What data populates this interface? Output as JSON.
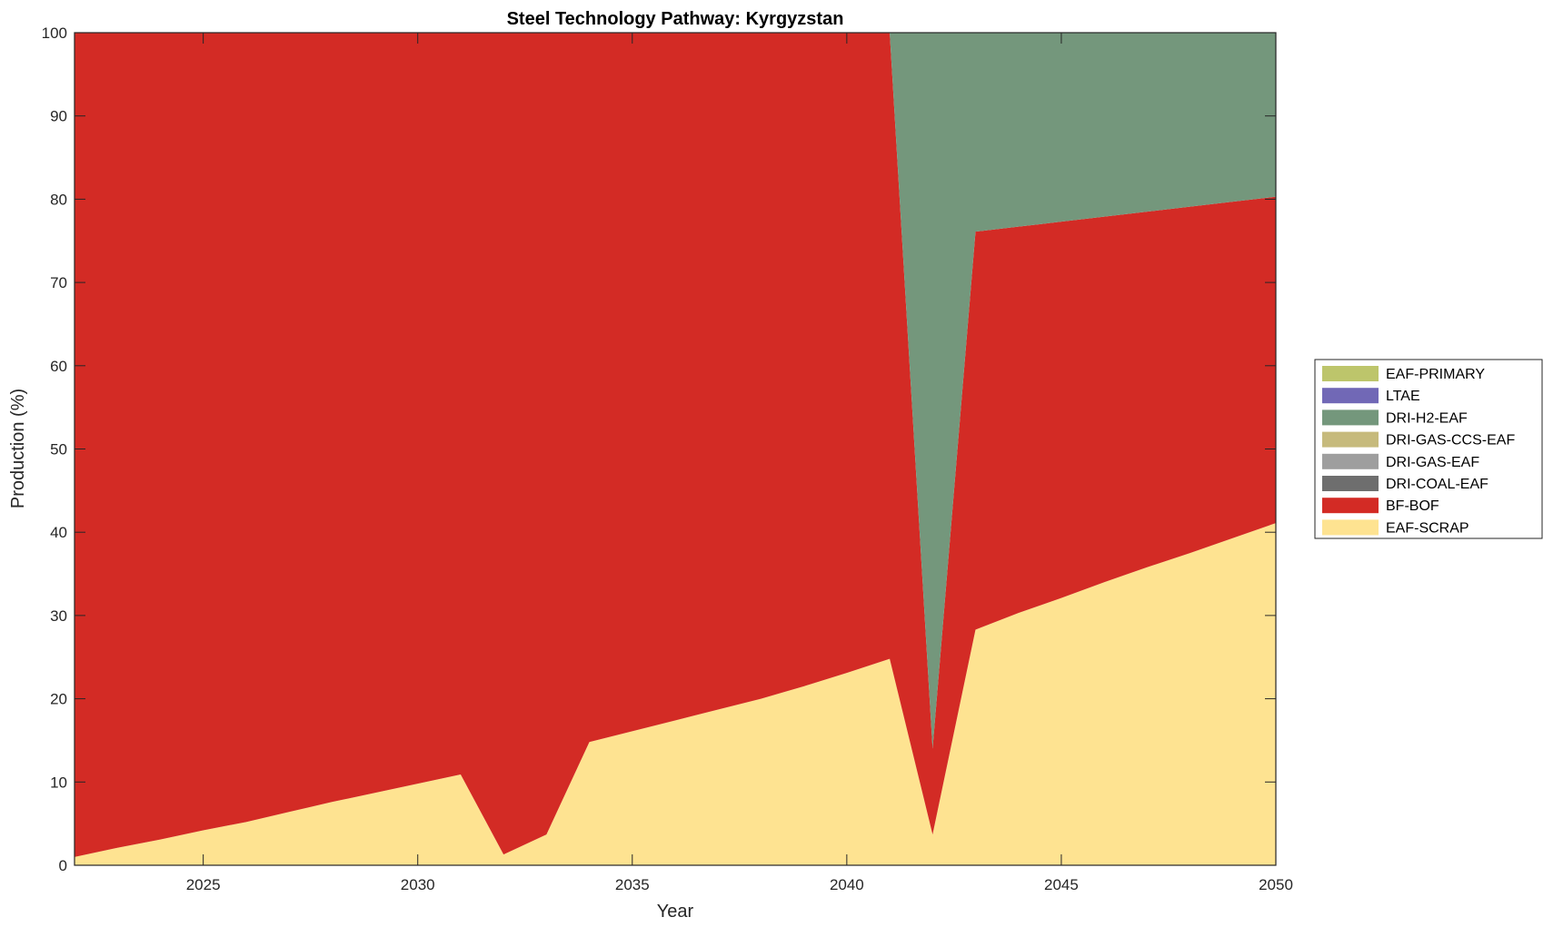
{
  "chart_data": {
    "type": "area",
    "title": "Steel Technology Pathway: Kyrgyzstan",
    "xlabel": "Year",
    "ylabel": "Production (%)",
    "xlim": [
      2022,
      2050
    ],
    "ylim": [
      0,
      100
    ],
    "xticks": [
      2025,
      2030,
      2035,
      2040,
      2045,
      2050
    ],
    "yticks": [
      0,
      10,
      20,
      30,
      40,
      50,
      60,
      70,
      80,
      90,
      100
    ],
    "grid": false,
    "legend_position": "right",
    "x": [
      2022,
      2023,
      2024,
      2025,
      2026,
      2027,
      2028,
      2029,
      2030,
      2031,
      2032,
      2033,
      2034,
      2035,
      2036,
      2037,
      2038,
      2039,
      2040,
      2041,
      2042,
      2043,
      2044,
      2045,
      2046,
      2047,
      2048,
      2049,
      2050
    ],
    "series": [
      {
        "name": "EAF-SCRAP",
        "color": "#FEE391",
        "values": [
          1.0,
          2.1,
          3.1,
          4.2,
          5.2,
          6.4,
          7.6,
          8.7,
          9.8,
          10.9,
          1.3,
          3.7,
          14.8,
          16.1,
          17.4,
          18.7,
          20.0,
          21.5,
          23.1,
          24.8,
          3.7,
          28.3,
          30.3,
          32.1,
          34.0,
          35.8,
          37.5,
          39.3,
          41.1
        ]
      },
      {
        "name": "BF-BOF",
        "color": "#D32B25",
        "values": [
          99.0,
          97.9,
          96.9,
          95.8,
          94.8,
          93.6,
          92.4,
          91.3,
          90.2,
          89.1,
          98.7,
          96.3,
          85.2,
          83.9,
          82.6,
          81.3,
          80.0,
          78.5,
          76.9,
          75.2,
          10.3,
          47.8,
          46.4,
          45.2,
          43.9,
          42.7,
          41.6,
          40.4,
          39.2
        ]
      },
      {
        "name": "DRI-COAL-EAF",
        "color": "#6E6E6E",
        "values": [
          0,
          0,
          0,
          0,
          0,
          0,
          0,
          0,
          0,
          0,
          0,
          0,
          0,
          0,
          0,
          0,
          0,
          0,
          0,
          0,
          0,
          0,
          0,
          0,
          0,
          0,
          0,
          0,
          0
        ]
      },
      {
        "name": "DRI-GAS-EAF",
        "color": "#9E9E9E",
        "values": [
          0,
          0,
          0,
          0,
          0,
          0,
          0,
          0,
          0,
          0,
          0,
          0,
          0,
          0,
          0,
          0,
          0,
          0,
          0,
          0,
          0,
          0,
          0,
          0,
          0,
          0,
          0,
          0,
          0
        ]
      },
      {
        "name": "DRI-GAS-CCS-EAF",
        "color": "#C6BA7C",
        "values": [
          0,
          0,
          0,
          0,
          0,
          0,
          0,
          0,
          0,
          0,
          0,
          0,
          0,
          0,
          0,
          0,
          0,
          0,
          0,
          0,
          0,
          0,
          0,
          0,
          0,
          0,
          0,
          0,
          0
        ]
      },
      {
        "name": "DRI-H2-EAF",
        "color": "#74977C",
        "values": [
          0,
          0,
          0,
          0,
          0,
          0,
          0,
          0,
          0,
          0,
          0,
          0,
          0,
          0,
          0,
          0,
          0,
          0,
          0,
          0,
          86.0,
          23.9,
          23.3,
          22.7,
          22.1,
          21.5,
          20.9,
          20.3,
          19.7
        ]
      },
      {
        "name": "LTAE",
        "color": "#7168B6",
        "values": [
          0,
          0,
          0,
          0,
          0,
          0,
          0,
          0,
          0,
          0,
          0,
          0,
          0,
          0,
          0,
          0,
          0,
          0,
          0,
          0,
          0,
          0,
          0,
          0,
          0,
          0,
          0,
          0,
          0
        ]
      },
      {
        "name": "EAF-PRIMARY",
        "color": "#BDC56B",
        "values": [
          0,
          0,
          0,
          0,
          0,
          0,
          0,
          0,
          0,
          0,
          0,
          0,
          0,
          0,
          0,
          0,
          0,
          0,
          0,
          0,
          0,
          0,
          0,
          0,
          0,
          0,
          0,
          0,
          0
        ]
      }
    ],
    "legend_order": [
      "EAF-PRIMARY",
      "LTAE",
      "DRI-H2-EAF",
      "DRI-GAS-CCS-EAF",
      "DRI-GAS-EAF",
      "DRI-COAL-EAF",
      "BF-BOF",
      "EAF-SCRAP"
    ]
  }
}
